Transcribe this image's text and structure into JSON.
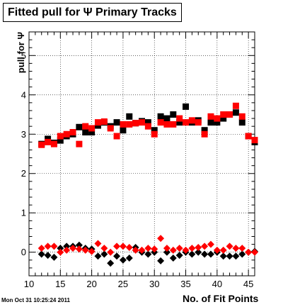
{
  "chart_data": {
    "type": "scatter",
    "title": "Fitted pull for Ψ  Primary Tracks",
    "xlabel": "No. of Fit Points",
    "ylabel": "pull for Ψ",
    "xlim": [
      10,
      46
    ],
    "ylim": [
      -0.6,
      5.6
    ],
    "xticks": [
      10,
      15,
      20,
      25,
      30,
      35,
      40,
      45
    ],
    "yticks": [
      0,
      1,
      2,
      3,
      4,
      5
    ],
    "grid": true,
    "series": [
      {
        "name": "",
        "marker": "square",
        "color": "#000000",
        "x": [
          12,
          13,
          14,
          15,
          16,
          17,
          18,
          19,
          20,
          21,
          22,
          23,
          24,
          25,
          26,
          27,
          28,
          29,
          30,
          31,
          32,
          33,
          34,
          35,
          36,
          37,
          38,
          39,
          40,
          41,
          42,
          43,
          44,
          45,
          46
        ],
        "y": [
          2.75,
          2.88,
          2.78,
          2.84,
          2.95,
          3.0,
          3.18,
          3.05,
          3.05,
          3.22,
          3.3,
          3.2,
          3.3,
          3.1,
          3.45,
          3.28,
          3.33,
          3.3,
          3.1,
          3.45,
          3.4,
          3.5,
          3.3,
          3.7,
          3.3,
          3.35,
          3.1,
          3.3,
          3.3,
          3.4,
          3.5,
          3.55,
          3.3,
          2.95,
          2.8
        ]
      },
      {
        "name": "",
        "marker": "square",
        "color": "#ff0000",
        "x": [
          12,
          13,
          14,
          15,
          16,
          17,
          18,
          19,
          20,
          21,
          22,
          23,
          24,
          25,
          26,
          27,
          28,
          29,
          30,
          31,
          32,
          33,
          34,
          35,
          36,
          37,
          38,
          39,
          40,
          41,
          42,
          43,
          44,
          45,
          46
        ],
        "y": [
          2.73,
          2.8,
          2.75,
          2.95,
          3.0,
          3.05,
          2.75,
          3.2,
          3.15,
          3.3,
          3.32,
          3.15,
          2.95,
          3.25,
          3.25,
          3.28,
          3.3,
          3.2,
          3.0,
          3.3,
          3.25,
          3.25,
          3.4,
          3.3,
          3.35,
          3.3,
          3.0,
          3.45,
          3.4,
          3.5,
          3.5,
          3.72,
          3.45,
          2.95,
          2.85
        ]
      },
      {
        "name": "",
        "marker": "diamond",
        "color": "#000000",
        "x": [
          12,
          13,
          14,
          15,
          16,
          17,
          18,
          19,
          20,
          21,
          22,
          23,
          24,
          25,
          26,
          27,
          28,
          29,
          30,
          31,
          32,
          33,
          34,
          35,
          36,
          37,
          38,
          39,
          40,
          41,
          42,
          43,
          44,
          45,
          46
        ],
        "y": [
          -0.05,
          -0.08,
          -0.13,
          0.1,
          0.15,
          0.15,
          0.18,
          0.1,
          0.08,
          -0.1,
          -0.05,
          -0.28,
          -0.1,
          -0.2,
          -0.15,
          0.12,
          0.0,
          -0.05,
          0.0,
          -0.22,
          0.0,
          -0.15,
          -0.08,
          0.0,
          -0.05,
          0.0,
          -0.05,
          -0.05,
          0.0,
          -0.1,
          -0.1,
          -0.1,
          -0.05,
          0.0,
          0.02
        ]
      },
      {
        "name": "",
        "marker": "diamond",
        "color": "#ff0000",
        "x": [
          12,
          13,
          14,
          15,
          16,
          17,
          18,
          19,
          20,
          21,
          22,
          23,
          24,
          25,
          26,
          27,
          28,
          29,
          30,
          31,
          32,
          33,
          34,
          35,
          36,
          37,
          38,
          39,
          40,
          41,
          42,
          43,
          44,
          45,
          46
        ],
        "y": [
          0.1,
          0.15,
          0.15,
          0.0,
          0.05,
          0.1,
          0.08,
          0.05,
          0.02,
          0.22,
          0.1,
          0.0,
          0.15,
          0.15,
          0.12,
          0.05,
          0.05,
          0.1,
          0.08,
          0.35,
          0.1,
          0.05,
          0.1,
          0.05,
          0.1,
          0.12,
          0.15,
          0.2,
          0.05,
          0.05,
          0.15,
          0.1,
          0.1,
          0.0,
          0.0
        ]
      }
    ]
  },
  "footer": "Mon Oct 31 10:25:24 2011"
}
